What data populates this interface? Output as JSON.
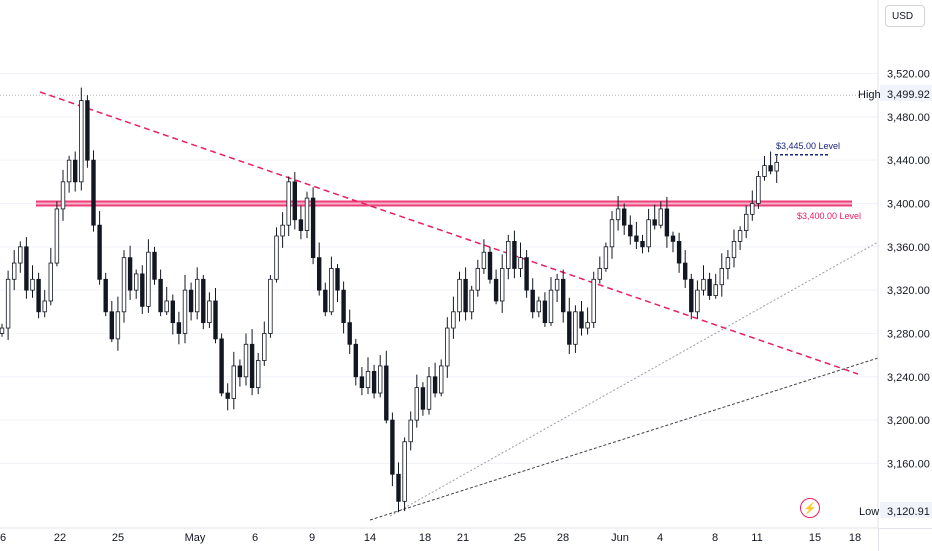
{
  "currency": "USD",
  "colors": {
    "candle": "#131722",
    "trendline": "#e91e63",
    "level_band": "#e91e63",
    "target_line": "#1a237e",
    "grid": "#f0f3fa"
  },
  "chart_data": {
    "type": "candlestick",
    "ylim": [
      3112,
      3555
    ],
    "yticks": [
      "3,520.00",
      "3,480.00",
      "3,440.00",
      "3,400.00",
      "3,360.00",
      "3,320.00",
      "3,280.00",
      "3,240.00",
      "3,200.00",
      "3,160.00"
    ],
    "ytick_values": [
      3520,
      3480,
      3440,
      3400,
      3360,
      3320,
      3280,
      3240,
      3200,
      3160
    ],
    "xticks": [
      "6",
      "22",
      "25",
      "May",
      "6",
      "9",
      "14",
      "18",
      "21",
      "25",
      "28",
      "Jun",
      "4",
      "8",
      "11",
      "15",
      "18"
    ],
    "high_label": "High",
    "high_value": "3,499.92",
    "high": 3499.92,
    "low_label": "Low",
    "low_value": "3,120.91",
    "low": 3120.91,
    "level_3400_label": "$3,400.00 Level",
    "level_3400": 3400,
    "level_3445_label": "$3,445.00 Level",
    "level_3445": 3445,
    "closes": [
      3285,
      3330,
      3345,
      3360,
      3320,
      3330,
      3300,
      3310,
      3345,
      3395,
      3420,
      3440,
      3420,
      3495,
      3440,
      3380,
      3330,
      3300,
      3275,
      3300,
      3350,
      3320,
      3335,
      3305,
      3355,
      3330,
      3300,
      3310,
      3290,
      3280,
      3320,
      3300,
      3330,
      3290,
      3310,
      3275,
      3225,
      3220,
      3250,
      3240,
      3270,
      3230,
      3255,
      3280,
      3330,
      3370,
      3380,
      3420,
      3385,
      3375,
      3405,
      3350,
      3320,
      3300,
      3340,
      3320,
      3290,
      3270,
      3240,
      3230,
      3245,
      3225,
      3250,
      3200,
      3150,
      3125,
      3180,
      3200,
      3230,
      3210,
      3240,
      3225,
      3250,
      3285,
      3300,
      3330,
      3300,
      3320,
      3340,
      3355,
      3330,
      3310,
      3340,
      3365,
      3340,
      3350,
      3320,
      3300,
      3310,
      3290,
      3320,
      3330,
      3300,
      3270,
      3300,
      3285,
      3290,
      3330,
      3340,
      3360,
      3385,
      3395,
      3380,
      3370,
      3365,
      3360,
      3385,
      3380,
      3395,
      3370,
      3365,
      3345,
      3330,
      3300,
      3320,
      3330,
      3315,
      3325,
      3340,
      3350,
      3365,
      3375,
      3390,
      3400,
      3425,
      3435,
      3430,
      3438
    ]
  }
}
